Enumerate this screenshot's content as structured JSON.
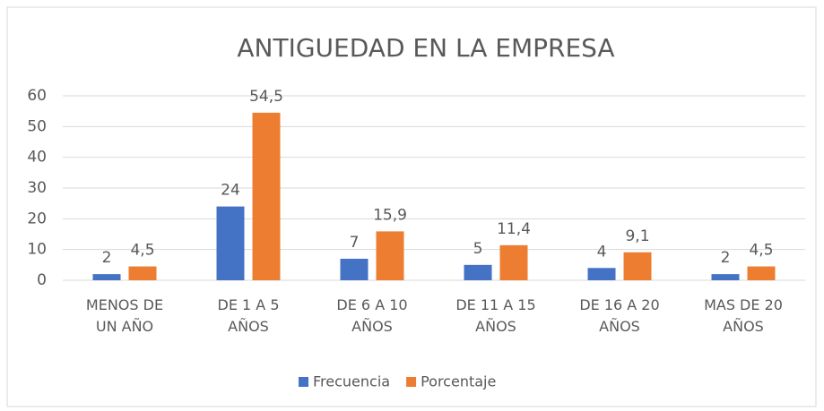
{
  "chart_data": {
    "type": "bar",
    "title": "ANTIGUEDAD EN LA EMPRESA",
    "categories": [
      "MENOS DE UN AÑO",
      "DE 1 A 5 AÑOS",
      "DE 6 A 10 AÑOS",
      "DE 11 A 15 AÑOS",
      "DE 16 A 20 AÑOS",
      "MAS DE 20 AÑOS"
    ],
    "series": [
      {
        "name": "Frecuencia",
        "color": "#4472c4",
        "values": [
          2,
          24,
          7,
          5,
          4,
          2
        ]
      },
      {
        "name": "Porcentaje",
        "color": "#ed7d31",
        "values": [
          4.5,
          54.5,
          15.9,
          11.4,
          9.1,
          4.5
        ],
        "value_labels": [
          "4,5",
          "54,5",
          "15,9",
          "11,4",
          "9,1",
          "4,5"
        ]
      }
    ],
    "ylim": [
      0,
      60
    ],
    "yticks": [
      0,
      10,
      20,
      30,
      40,
      50,
      60
    ],
    "grid": true,
    "legend": "bottom"
  }
}
